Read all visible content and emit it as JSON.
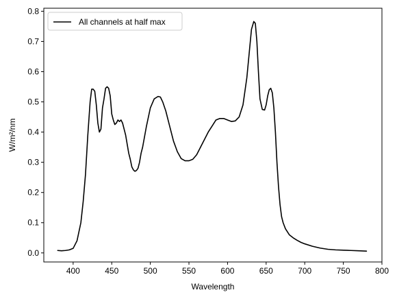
{
  "chart_data": {
    "type": "line",
    "xlabel": "Wavelength",
    "ylabel": "W/m²/nm",
    "xlim": [
      362,
      800
    ],
    "ylim": [
      -0.03,
      0.81
    ],
    "xticks": [
      400,
      450,
      500,
      550,
      600,
      650,
      700,
      750,
      800
    ],
    "yticks": [
      0.0,
      0.1,
      0.2,
      0.3,
      0.4,
      0.5,
      0.6,
      0.7,
      0.8
    ],
    "xtick_labels": [
      "400",
      "450",
      "500",
      "550",
      "600",
      "650",
      "700",
      "750",
      "800"
    ],
    "ytick_labels": [
      "0.0",
      "0.1",
      "0.2",
      "0.3",
      "0.4",
      "0.5",
      "0.6",
      "0.7",
      "0.8"
    ],
    "grid": false,
    "legend_position": "top-left",
    "series": [
      {
        "name": "All channels at half max",
        "color": "#000000",
        "x": [
          380,
          385,
          390,
          395,
          400,
          405,
          410,
          413,
          416,
          419,
          422,
          424,
          426,
          428,
          430,
          432,
          434,
          436,
          438,
          440,
          442,
          444,
          446,
          448,
          450,
          452,
          454,
          456,
          458,
          460,
          462,
          464,
          466,
          468,
          470,
          472,
          474,
          476,
          478,
          480,
          482,
          484,
          486,
          488,
          490,
          495,
          500,
          505,
          510,
          513,
          516,
          520,
          525,
          530,
          535,
          540,
          545,
          550,
          555,
          560,
          565,
          570,
          575,
          580,
          585,
          590,
          595,
          600,
          605,
          610,
          615,
          620,
          625,
          628,
          631,
          634,
          636,
          638,
          640,
          642,
          645,
          648,
          650,
          652,
          654,
          656,
          658,
          660,
          662,
          664,
          666,
          668,
          670,
          672,
          675,
          680,
          685,
          690,
          695,
          700,
          710,
          720,
          730,
          740,
          750,
          760,
          770,
          780
        ],
        "values": [
          0.008,
          0.007,
          0.008,
          0.01,
          0.015,
          0.04,
          0.1,
          0.17,
          0.26,
          0.39,
          0.5,
          0.542,
          0.542,
          0.535,
          0.49,
          0.43,
          0.4,
          0.41,
          0.48,
          0.51,
          0.545,
          0.55,
          0.545,
          0.52,
          0.46,
          0.44,
          0.425,
          0.43,
          0.44,
          0.435,
          0.44,
          0.43,
          0.41,
          0.39,
          0.36,
          0.33,
          0.31,
          0.285,
          0.275,
          0.27,
          0.273,
          0.28,
          0.3,
          0.33,
          0.35,
          0.42,
          0.48,
          0.51,
          0.518,
          0.516,
          0.5,
          0.47,
          0.42,
          0.37,
          0.335,
          0.312,
          0.305,
          0.305,
          0.31,
          0.325,
          0.35,
          0.375,
          0.4,
          0.42,
          0.44,
          0.445,
          0.445,
          0.44,
          0.435,
          0.437,
          0.45,
          0.49,
          0.58,
          0.66,
          0.74,
          0.766,
          0.76,
          0.7,
          0.6,
          0.51,
          0.475,
          0.473,
          0.49,
          0.52,
          0.54,
          0.545,
          0.53,
          0.48,
          0.4,
          0.3,
          0.22,
          0.16,
          0.12,
          0.1,
          0.08,
          0.06,
          0.05,
          0.042,
          0.035,
          0.03,
          0.022,
          0.016,
          0.012,
          0.01,
          0.009,
          0.008,
          0.007,
          0.006
        ]
      }
    ]
  }
}
